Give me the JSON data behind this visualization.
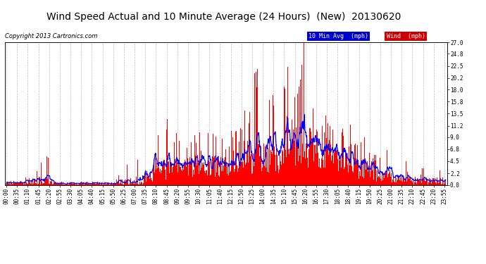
{
  "title": "Wind Speed Actual and 10 Minute Average (24 Hours)  (New)  20130620",
  "copyright": "Copyright 2013 Cartronics.com",
  "legend_labels": [
    "10 Min Avg  (mph)",
    "Wind  (mph)"
  ],
  "legend_bg_colors": [
    "#0000cc",
    "#cc0000"
  ],
  "ylim": [
    0,
    27.0
  ],
  "yticks": [
    0.0,
    2.2,
    4.5,
    6.8,
    9.0,
    11.2,
    13.5,
    15.8,
    18.0,
    20.2,
    22.5,
    24.8,
    27.0
  ],
  "background_color": "#ffffff",
  "grid_color": "#bbbbbb",
  "title_fontsize": 10,
  "copyright_fontsize": 6,
  "tick_fontsize": 5.5,
  "wind_color": "#ff0000",
  "avg_color": "#0000ff"
}
